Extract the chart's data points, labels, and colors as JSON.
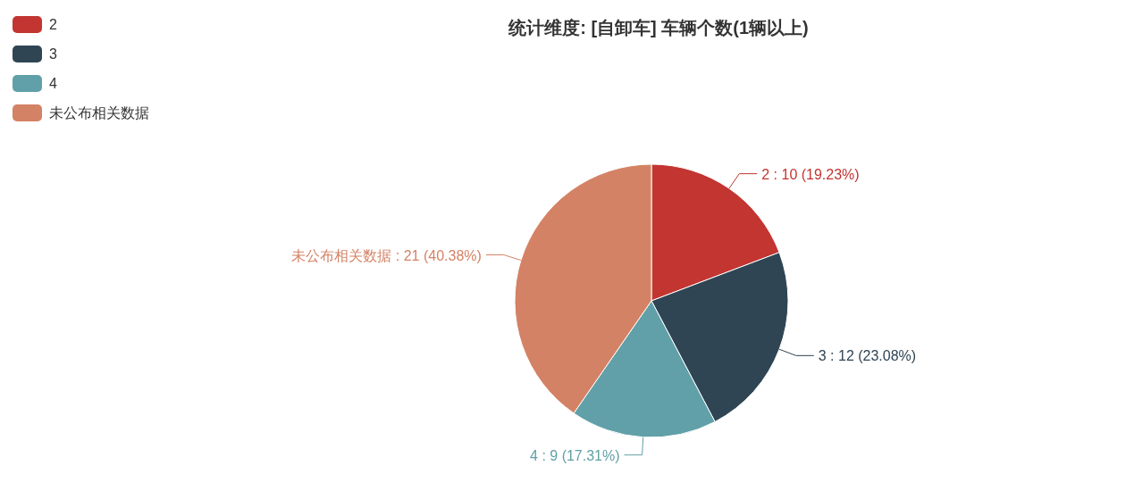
{
  "chart_data": {
    "type": "pie",
    "title": "统计维度: [自卸车] 车辆个数(1辆以上)",
    "categories": [
      "2",
      "3",
      "4",
      "未公布相关数据"
    ],
    "values": [
      10,
      12,
      9,
      21
    ],
    "colors": [
      "#c23531",
      "#2f4554",
      "#61a0a8",
      "#d48265"
    ],
    "value_labels": [
      "2 : 10 (19.23%)",
      "3 : 12 (23.08%)",
      "4 : 9 (17.31%)",
      "未公布相关数据 : 21 (40.38%)"
    ],
    "legend": "top left"
  }
}
